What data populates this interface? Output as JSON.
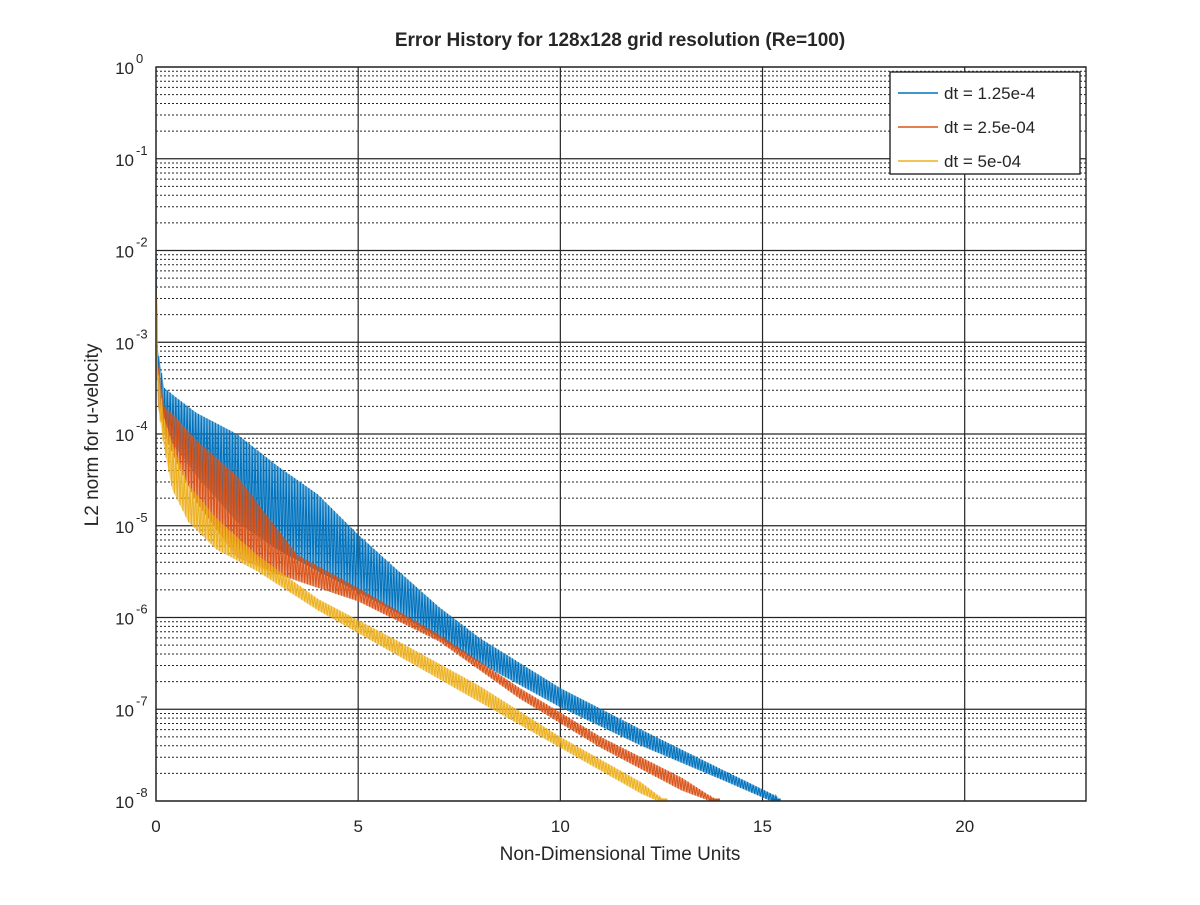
{
  "chart_data": {
    "type": "line",
    "title": "Error History for 128x128 grid resolution (Re=100)",
    "xlabel": "Non-Dimensional Time Units",
    "ylabel": "L2 norm for u-velocity",
    "xlim": [
      0,
      23
    ],
    "ylim": [
      1e-08,
      1
    ],
    "yscale": "log",
    "grid": true,
    "minor_grid": true,
    "legend_position": "top-right",
    "x_ticks": [
      {
        "value": 0,
        "label": "0"
      },
      {
        "value": 5,
        "label": "5"
      },
      {
        "value": 10,
        "label": "10"
      },
      {
        "value": 15,
        "label": "15"
      },
      {
        "value": 20,
        "label": "20"
      }
    ],
    "y_ticks": [
      {
        "value": 1,
        "base": "10",
        "exp": "0"
      },
      {
        "value": 0.1,
        "base": "10",
        "exp": "-1"
      },
      {
        "value": 0.01,
        "base": "10",
        "exp": "-2"
      },
      {
        "value": 0.001,
        "base": "10",
        "exp": "-3"
      },
      {
        "value": 0.0001,
        "base": "10",
        "exp": "-4"
      },
      {
        "value": 1e-05,
        "base": "10",
        "exp": "-5"
      },
      {
        "value": 1e-06,
        "base": "10",
        "exp": "-6"
      },
      {
        "value": 1e-07,
        "base": "10",
        "exp": "-7"
      },
      {
        "value": 1e-08,
        "base": "10",
        "exp": "-8"
      }
    ],
    "series": [
      {
        "name": "dt = 1.25e-4",
        "color": "#0072BD",
        "upper": [
          [
            0,
            0.012
          ],
          [
            0.05,
            0.0008
          ],
          [
            0.2,
            0.00032
          ],
          [
            0.5,
            0.00025
          ],
          [
            1,
            0.00017
          ],
          [
            2,
            0.0001
          ],
          [
            3,
            4.5e-05
          ],
          [
            4,
            2.2e-05
          ],
          [
            5,
            8e-06
          ],
          [
            6,
            3.2e-06
          ],
          [
            7,
            1.3e-06
          ],
          [
            8,
            6e-07
          ],
          [
            10,
            1.7e-07
          ],
          [
            12,
            6e-08
          ],
          [
            14,
            2.2e-08
          ],
          [
            15.4,
            1.1e-08
          ]
        ],
        "lower": [
          [
            0,
            0.002
          ],
          [
            0.05,
            0.0002
          ],
          [
            0.2,
            0.00011
          ],
          [
            0.5,
            7e-05
          ],
          [
            1,
            3.5e-05
          ],
          [
            2,
            1.1e-05
          ],
          [
            3,
            5.5e-06
          ],
          [
            4,
            3.2e-06
          ],
          [
            5,
            1.9e-06
          ],
          [
            6,
            1.1e-06
          ],
          [
            7,
            6e-07
          ],
          [
            8,
            3.2e-07
          ],
          [
            10,
            1.05e-07
          ],
          [
            12,
            4e-08
          ],
          [
            14,
            1.7e-08
          ],
          [
            15.2,
            1e-08
          ]
        ]
      },
      {
        "name": "dt = 2.5e-04",
        "color": "#D95319",
        "upper": [
          [
            0,
            0.006
          ],
          [
            0.05,
            0.0006
          ],
          [
            0.2,
            0.0002
          ],
          [
            0.5,
            0.00015
          ],
          [
            1,
            8.5e-05
          ],
          [
            2,
            3.5e-05
          ],
          [
            2.8,
            1.2e-05
          ],
          [
            3.5,
            4.8e-06
          ],
          [
            5,
            2.1e-06
          ],
          [
            7,
            6.5e-07
          ],
          [
            9,
            1.7e-07
          ],
          [
            11,
            5e-08
          ],
          [
            13,
            1.8e-08
          ],
          [
            13.9,
            1e-08
          ]
        ],
        "lower": [
          [
            0,
            0.002
          ],
          [
            0.05,
            0.0002
          ],
          [
            0.2,
            0.0001
          ],
          [
            0.5,
            5e-05
          ],
          [
            1,
            1.8e-05
          ],
          [
            2,
            4.5e-06
          ],
          [
            2.8,
            3.2e-06
          ],
          [
            3.5,
            2.5e-06
          ],
          [
            5,
            1.5e-06
          ],
          [
            7,
            5.5e-07
          ],
          [
            9,
            1.3e-07
          ],
          [
            11,
            3.8e-08
          ],
          [
            13,
            1.3e-08
          ],
          [
            13.7,
            1e-08
          ]
        ]
      },
      {
        "name": "dt = 5e-04",
        "color": "#EDB120",
        "upper": [
          [
            0,
            0.004
          ],
          [
            0.05,
            0.0005
          ],
          [
            0.2,
            0.00015
          ],
          [
            0.4,
            8e-05
          ],
          [
            0.8,
            2.8e-05
          ],
          [
            1.5,
            1.2e-05
          ],
          [
            2.5,
            4.8e-06
          ],
          [
            4,
            1.6e-06
          ],
          [
            6,
            5.5e-07
          ],
          [
            8,
            1.8e-07
          ],
          [
            10,
            5e-08
          ],
          [
            12,
            1.6e-08
          ],
          [
            12.6,
            1e-08
          ]
        ],
        "lower": [
          [
            0,
            0.002
          ],
          [
            0.05,
            0.0002
          ],
          [
            0.2,
            7e-05
          ],
          [
            0.4,
            2.5e-05
          ],
          [
            0.8,
            1.1e-05
          ],
          [
            1.5,
            5.5e-06
          ],
          [
            2.5,
            3.2e-06
          ],
          [
            4,
            1.2e-06
          ],
          [
            6,
            3.8e-07
          ],
          [
            8,
            1.2e-07
          ],
          [
            10,
            3.8e-08
          ],
          [
            12,
            1.2e-08
          ],
          [
            12.4,
            1e-08
          ]
        ]
      }
    ]
  }
}
